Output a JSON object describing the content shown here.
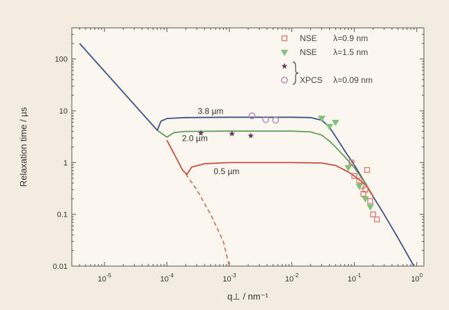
{
  "chart_data": {
    "type": "scatter",
    "title": "",
    "xlabel": "q⊥ / nm⁻¹",
    "ylabel": "Relaxation time / µs",
    "x_scale": "log",
    "y_scale": "log",
    "xlim": [
      3e-06,
      1.3
    ],
    "ylim": [
      0.01,
      400
    ],
    "grid": false,
    "legend_position": "top-right",
    "x_ticks": [
      {
        "value": 1e-05,
        "base": "10",
        "exp": "-5"
      },
      {
        "value": 0.0001,
        "base": "10",
        "exp": "-4"
      },
      {
        "value": 0.001,
        "base": "10",
        "exp": "-3"
      },
      {
        "value": 0.01,
        "base": "10",
        "exp": "-2"
      },
      {
        "value": 0.1,
        "base": "10",
        "exp": "-1"
      },
      {
        "value": 1,
        "base": "10",
        "exp": "0"
      }
    ],
    "y_ticks": [
      {
        "value": 100,
        "label": "100"
      },
      {
        "value": 10,
        "label": "10"
      },
      {
        "value": 1,
        "label": "1"
      },
      {
        "value": 0.1,
        "label": "0.1"
      },
      {
        "value": 0.01,
        "label": "0.01"
      }
    ],
    "curves": [
      {
        "label": "3.8 µm",
        "color": "#3d4f8c",
        "points": [
          [
            4e-06,
            200
          ],
          [
            7e-05,
            4.2
          ],
          [
            8e-05,
            6.3
          ],
          [
            0.0001,
            7.1
          ],
          [
            0.0002,
            7.4
          ],
          [
            0.001,
            7.5
          ],
          [
            0.01,
            7.5
          ],
          [
            0.02,
            7.4
          ],
          [
            0.03,
            6.6
          ],
          [
            0.04,
            4.8
          ],
          [
            0.05,
            3.2
          ],
          [
            0.07,
            1.7
          ],
          [
            0.1,
            0.9
          ],
          [
            0.15,
            0.4
          ],
          [
            0.2,
            0.22
          ],
          [
            0.3,
            0.1
          ],
          [
            0.5,
            0.035
          ],
          [
            0.9,
            0.01
          ]
        ],
        "label_at": [
          0.0005,
          8.7
        ]
      },
      {
        "label": "2.0 µm",
        "color": "#5f9e5a",
        "points": [
          [
            7e-05,
            4.2
          ],
          [
            0.0001,
            3.1
          ],
          [
            0.00013,
            3.8
          ],
          [
            0.0002,
            4.0
          ],
          [
            0.001,
            4.05
          ],
          [
            0.01,
            4.05
          ],
          [
            0.02,
            3.9
          ],
          [
            0.03,
            3.4
          ],
          [
            0.04,
            2.6
          ],
          [
            0.05,
            2.0
          ],
          [
            0.07,
            1.3
          ],
          [
            0.1,
            0.8
          ],
          [
            0.15,
            0.4
          ],
          [
            0.2,
            0.22
          ]
        ],
        "label_at": [
          0.00028,
          2.6
        ]
      },
      {
        "label": "0.5 µm",
        "color": "#cc4a42",
        "points": [
          [
            0.0001,
            2.7
          ],
          [
            0.00018,
            0.7
          ],
          [
            0.00021,
            0.6
          ],
          [
            0.00025,
            0.82
          ],
          [
            0.0004,
            0.95
          ],
          [
            0.001,
            1.0
          ],
          [
            0.01,
            1.0
          ],
          [
            0.03,
            0.98
          ],
          [
            0.05,
            0.88
          ],
          [
            0.08,
            0.66
          ],
          [
            0.1,
            0.55
          ],
          [
            0.15,
            0.38
          ],
          [
            0.2,
            0.22
          ]
        ],
        "label_at": [
          0.0009,
          0.6
        ]
      }
    ],
    "dashed_line": {
      "color": "#cc6a55",
      "points": [
        [
          0.0002,
          0.6
        ],
        [
          0.0003,
          0.3
        ],
        [
          0.0005,
          0.1
        ],
        [
          0.0008,
          0.03
        ],
        [
          0.001,
          0.01
        ]
      ]
    },
    "series": [
      {
        "name": "NSE",
        "lambda": "λ=0.9 nm",
        "marker": "square",
        "color": "#d9776e",
        "points": [
          [
            0.09,
            1.0
          ],
          [
            0.1,
            0.55
          ],
          [
            0.12,
            0.45
          ],
          [
            0.13,
            0.35
          ],
          [
            0.14,
            0.25
          ],
          [
            0.15,
            0.3
          ],
          [
            0.16,
            0.72
          ],
          [
            0.18,
            0.18
          ],
          [
            0.2,
            0.1
          ],
          [
            0.23,
            0.08
          ]
        ]
      },
      {
        "name": "NSE",
        "lambda": "λ=1.5 nm",
        "marker": "triangle",
        "color": "#7fc27a",
        "points": [
          [
            0.03,
            7.2
          ],
          [
            0.04,
            5.0
          ],
          [
            0.05,
            6.0
          ],
          [
            0.08,
            0.8
          ],
          [
            0.12,
            0.35
          ],
          [
            0.15,
            0.2
          ],
          [
            0.18,
            0.14
          ]
        ]
      },
      {
        "name": "XPCS",
        "lambda": "λ=0.09 nm",
        "marker": "star",
        "color": "#6a3c60",
        "points": [
          [
            0.00035,
            3.7
          ],
          [
            0.0011,
            3.6
          ],
          [
            0.0022,
            3.3
          ]
        ]
      },
      {
        "name": "",
        "lambda": "",
        "marker": "circle",
        "color": "#b08ab8",
        "points": [
          [
            0.0023,
            8.0
          ],
          [
            0.0038,
            6.8
          ],
          [
            0.0055,
            6.6
          ]
        ]
      }
    ],
    "legend": [
      {
        "marker": "square",
        "color": "#d9776e",
        "name": "NSE",
        "lambda": "λ=0.9 nm"
      },
      {
        "marker": "triangle",
        "color": "#7fc27a",
        "name": "NSE",
        "lambda": "λ=1.5 nm"
      },
      {
        "marker": "star",
        "color": "#6a3c60",
        "name": "",
        "lambda": ""
      },
      {
        "marker": "circle",
        "color": "#b08ab8",
        "name": "XPCS",
        "lambda": "λ=0.09 nm"
      }
    ]
  }
}
